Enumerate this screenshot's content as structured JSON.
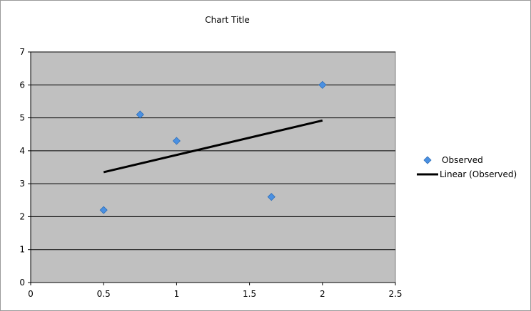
{
  "chart_data": {
    "type": "scatter",
    "title": "Chart Title",
    "xlabel": "",
    "ylabel": "",
    "xlim": [
      0,
      2.5
    ],
    "ylim": [
      0,
      7
    ],
    "x_ticks": [
      "0",
      "0.5",
      "1",
      "1.5",
      "2",
      "2.5"
    ],
    "y_ticks": [
      "0",
      "1",
      "2",
      "3",
      "4",
      "5",
      "6",
      "7"
    ],
    "grid": true,
    "legend_position": "right",
    "plot_background": "#c0c0c0",
    "series": [
      {
        "name": "Observed",
        "marker": "diamond",
        "color": "#4a90e2",
        "x": [
          0.5,
          0.75,
          1.0,
          1.65,
          2.0
        ],
        "y": [
          2.2,
          5.1,
          4.3,
          2.6,
          6.0
        ]
      }
    ],
    "trendline": {
      "name": "Linear (Observed)",
      "type": "linear",
      "color": "#000000",
      "x": [
        0.5,
        2.0
      ],
      "y": [
        3.35,
        4.92
      ]
    }
  }
}
